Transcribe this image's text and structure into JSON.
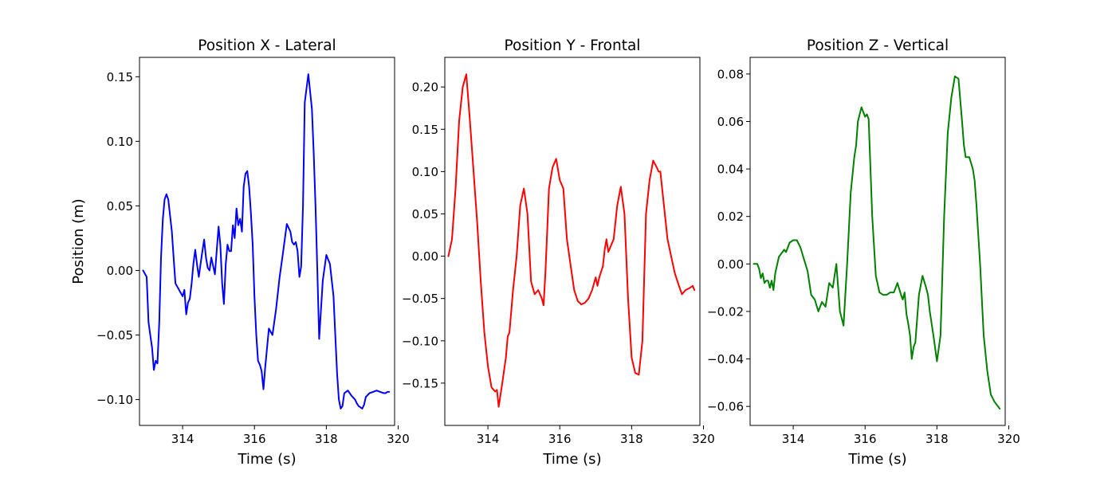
{
  "chart_data": [
    {
      "type": "line",
      "title": "Position X - Lateral",
      "xlabel": "Time (s)",
      "ylabel": "Position (m)",
      "xlim": [
        312.8,
        319.9
      ],
      "ylim": [
        -0.12,
        0.165
      ],
      "xticks": [
        314,
        316,
        318,
        320
      ],
      "yticks": [
        -0.1,
        -0.05,
        0.0,
        0.05,
        0.1,
        0.15
      ],
      "ytick_labels": [
        "−0.10",
        "−0.05",
        "0.00",
        "0.05",
        "0.10",
        "0.15"
      ],
      "grid": false,
      "color": "#0000ff",
      "x": [
        312.9,
        313.0,
        313.05,
        313.1,
        313.15,
        313.2,
        313.25,
        313.3,
        313.35,
        313.4,
        313.45,
        313.5,
        313.55,
        313.6,
        313.7,
        313.75,
        313.8,
        313.9,
        314.0,
        314.05,
        314.1,
        314.15,
        314.2,
        314.25,
        314.3,
        314.35,
        314.4,
        314.45,
        314.5,
        314.55,
        314.6,
        314.65,
        314.7,
        314.75,
        314.8,
        314.9,
        315.0,
        315.05,
        315.1,
        315.15,
        315.2,
        315.25,
        315.3,
        315.35,
        315.4,
        315.45,
        315.5,
        315.55,
        315.6,
        315.65,
        315.7,
        315.75,
        315.8,
        315.85,
        315.9,
        315.95,
        316.0,
        316.05,
        316.1,
        316.15,
        316.2,
        316.25,
        316.3,
        316.35,
        316.4,
        316.5,
        316.6,
        316.7,
        316.8,
        316.9,
        317.0,
        317.05,
        317.1,
        317.15,
        317.2,
        317.25,
        317.3,
        317.35,
        317.4,
        317.5,
        317.6,
        317.65,
        317.7,
        317.75,
        317.8,
        317.9,
        318.0,
        318.1,
        318.2,
        318.25,
        318.3,
        318.35,
        318.4,
        318.45,
        318.5,
        318.6,
        318.7,
        318.8,
        318.85,
        318.9,
        318.95,
        319.0,
        319.05,
        319.1,
        319.2,
        319.3,
        319.4,
        319.5,
        319.6,
        319.65,
        319.7,
        319.75
      ],
      "values": [
        0.0,
        -0.005,
        -0.04,
        -0.05,
        -0.06,
        -0.077,
        -0.07,
        -0.072,
        -0.04,
        0.01,
        0.04,
        0.055,
        0.059,
        0.055,
        0.03,
        0.01,
        -0.01,
        -0.015,
        -0.02,
        -0.015,
        -0.034,
        -0.025,
        -0.022,
        -0.01,
        0.005,
        0.016,
        0.005,
        -0.005,
        0.005,
        0.015,
        0.024,
        0.01,
        0.002,
        0.0,
        0.01,
        -0.003,
        0.034,
        0.02,
        -0.01,
        -0.026,
        0.005,
        0.02,
        0.015,
        0.015,
        0.035,
        0.025,
        0.048,
        0.035,
        0.04,
        0.03,
        0.065,
        0.075,
        0.077,
        0.065,
        0.045,
        0.02,
        -0.02,
        -0.05,
        -0.07,
        -0.073,
        -0.078,
        -0.092,
        -0.075,
        -0.06,
        -0.045,
        -0.05,
        -0.03,
        -0.005,
        0.015,
        0.036,
        0.03,
        0.022,
        0.02,
        0.022,
        0.015,
        -0.005,
        0.003,
        0.05,
        0.13,
        0.152,
        0.125,
        0.09,
        0.05,
        0.0,
        -0.053,
        -0.008,
        0.012,
        0.005,
        -0.02,
        -0.05,
        -0.08,
        -0.1,
        -0.107,
        -0.105,
        -0.095,
        -0.093,
        -0.097,
        -0.1,
        -0.103,
        -0.105,
        -0.106,
        -0.107,
        -0.104,
        -0.098,
        -0.095,
        -0.094,
        -0.093,
        -0.094,
        -0.095,
        -0.095,
        -0.094,
        -0.094
      ]
    },
    {
      "type": "line",
      "title": "Position Y - Frontal",
      "xlabel": "Time (s)",
      "ylabel": "",
      "xlim": [
        312.8,
        319.9
      ],
      "ylim": [
        -0.2,
        0.235
      ],
      "xticks": [
        314,
        316,
        318,
        320
      ],
      "yticks": [
        -0.15,
        -0.1,
        -0.05,
        0.0,
        0.05,
        0.1,
        0.15,
        0.2
      ],
      "ytick_labels": [
        "−0.15",
        "−0.10",
        "−0.05",
        "0.00",
        "0.05",
        "0.10",
        "0.15",
        "0.20"
      ],
      "grid": false,
      "color": "#ff0000",
      "x": [
        312.9,
        313.0,
        313.1,
        313.2,
        313.3,
        313.4,
        313.5,
        313.6,
        313.7,
        313.8,
        313.9,
        314.0,
        314.1,
        314.2,
        314.25,
        314.3,
        314.4,
        314.5,
        314.55,
        314.6,
        314.7,
        314.8,
        314.9,
        315.0,
        315.1,
        315.2,
        315.3,
        315.4,
        315.5,
        315.55,
        315.6,
        315.7,
        315.8,
        315.9,
        316.0,
        316.1,
        316.2,
        316.3,
        316.4,
        316.5,
        316.6,
        316.7,
        316.8,
        316.9,
        317.0,
        317.05,
        317.1,
        317.2,
        317.25,
        317.3,
        317.35,
        317.4,
        317.5,
        317.6,
        317.7,
        317.8,
        317.9,
        318.0,
        318.1,
        318.2,
        318.3,
        318.4,
        318.5,
        318.6,
        318.7,
        318.75,
        318.8,
        318.9,
        319.0,
        319.1,
        319.2,
        319.3,
        319.4,
        319.5,
        319.6,
        319.7,
        319.75
      ],
      "values": [
        0.0,
        0.02,
        0.08,
        0.16,
        0.2,
        0.215,
        0.16,
        0.1,
        0.04,
        -0.03,
        -0.09,
        -0.13,
        -0.155,
        -0.16,
        -0.158,
        -0.178,
        -0.15,
        -0.12,
        -0.095,
        -0.09,
        -0.04,
        0.0,
        0.06,
        0.08,
        0.05,
        -0.03,
        -0.045,
        -0.04,
        -0.05,
        -0.058,
        -0.02,
        0.08,
        0.105,
        0.115,
        0.09,
        0.08,
        0.02,
        -0.01,
        -0.04,
        -0.053,
        -0.057,
        -0.055,
        -0.05,
        -0.04,
        -0.025,
        -0.035,
        -0.025,
        -0.012,
        0.008,
        0.02,
        0.005,
        0.01,
        0.02,
        0.06,
        0.082,
        0.05,
        -0.05,
        -0.12,
        -0.138,
        -0.14,
        -0.1,
        0.05,
        0.09,
        0.113,
        0.105,
        0.1,
        0.1,
        0.06,
        0.02,
        0.0,
        -0.02,
        -0.033,
        -0.045,
        -0.04,
        -0.038,
        -0.035,
        -0.04
      ]
    },
    {
      "type": "line",
      "title": "Position Z - Vertical",
      "xlabel": "Time (s)",
      "ylabel": "",
      "xlim": [
        312.8,
        319.9
      ],
      "ylim": [
        -0.068,
        0.087
      ],
      "xticks": [
        314,
        316,
        318,
        320
      ],
      "yticks": [
        -0.06,
        -0.04,
        -0.02,
        0.0,
        0.02,
        0.04,
        0.06,
        0.08
      ],
      "ytick_labels": [
        "−0.06",
        "−0.04",
        "−0.02",
        "0.00",
        "0.02",
        "0.04",
        "0.06",
        "0.08"
      ],
      "grid": false,
      "color": "#008000",
      "x": [
        312.9,
        313.0,
        313.05,
        313.1,
        313.15,
        313.2,
        313.25,
        313.3,
        313.35,
        313.4,
        313.45,
        313.5,
        313.6,
        313.7,
        313.75,
        313.8,
        313.9,
        314.0,
        314.1,
        314.2,
        314.3,
        314.4,
        314.5,
        314.6,
        314.7,
        314.8,
        314.9,
        315.0,
        315.1,
        315.2,
        315.3,
        315.4,
        315.5,
        315.6,
        315.7,
        315.75,
        315.8,
        315.9,
        316.0,
        316.05,
        316.1,
        316.2,
        316.3,
        316.4,
        316.5,
        316.6,
        316.7,
        316.8,
        316.9,
        317.0,
        317.05,
        317.1,
        317.15,
        317.2,
        317.25,
        317.3,
        317.35,
        317.4,
        317.5,
        317.6,
        317.7,
        317.75,
        317.8,
        317.9,
        318.0,
        318.1,
        318.2,
        318.3,
        318.4,
        318.5,
        318.6,
        318.7,
        318.75,
        318.8,
        318.9,
        319.0,
        319.05,
        319.1,
        319.2,
        319.3,
        319.4,
        319.5,
        319.6,
        319.7,
        319.75
      ],
      "values": [
        0.0,
        0.0,
        -0.002,
        -0.006,
        -0.004,
        -0.008,
        -0.007,
        -0.007,
        -0.01,
        -0.007,
        -0.011,
        -0.004,
        0.003,
        0.005,
        0.006,
        0.005,
        0.009,
        0.01,
        0.01,
        0.007,
        0.002,
        -0.003,
        -0.013,
        -0.015,
        -0.02,
        -0.016,
        -0.018,
        -0.008,
        -0.01,
        0.0,
        -0.02,
        -0.026,
        0.0,
        0.03,
        0.045,
        0.05,
        0.06,
        0.066,
        0.062,
        0.063,
        0.061,
        0.02,
        -0.005,
        -0.012,
        -0.013,
        -0.013,
        -0.012,
        -0.012,
        -0.008,
        -0.013,
        -0.015,
        -0.012,
        -0.021,
        -0.025,
        -0.03,
        -0.04,
        -0.035,
        -0.033,
        -0.013,
        -0.005,
        -0.01,
        -0.013,
        -0.02,
        -0.03,
        -0.041,
        -0.03,
        0.02,
        0.055,
        0.07,
        0.079,
        0.078,
        0.06,
        0.05,
        0.045,
        0.045,
        0.04,
        0.035,
        0.025,
        0.0,
        -0.03,
        -0.045,
        -0.055,
        -0.058,
        -0.06,
        -0.061
      ]
    }
  ]
}
